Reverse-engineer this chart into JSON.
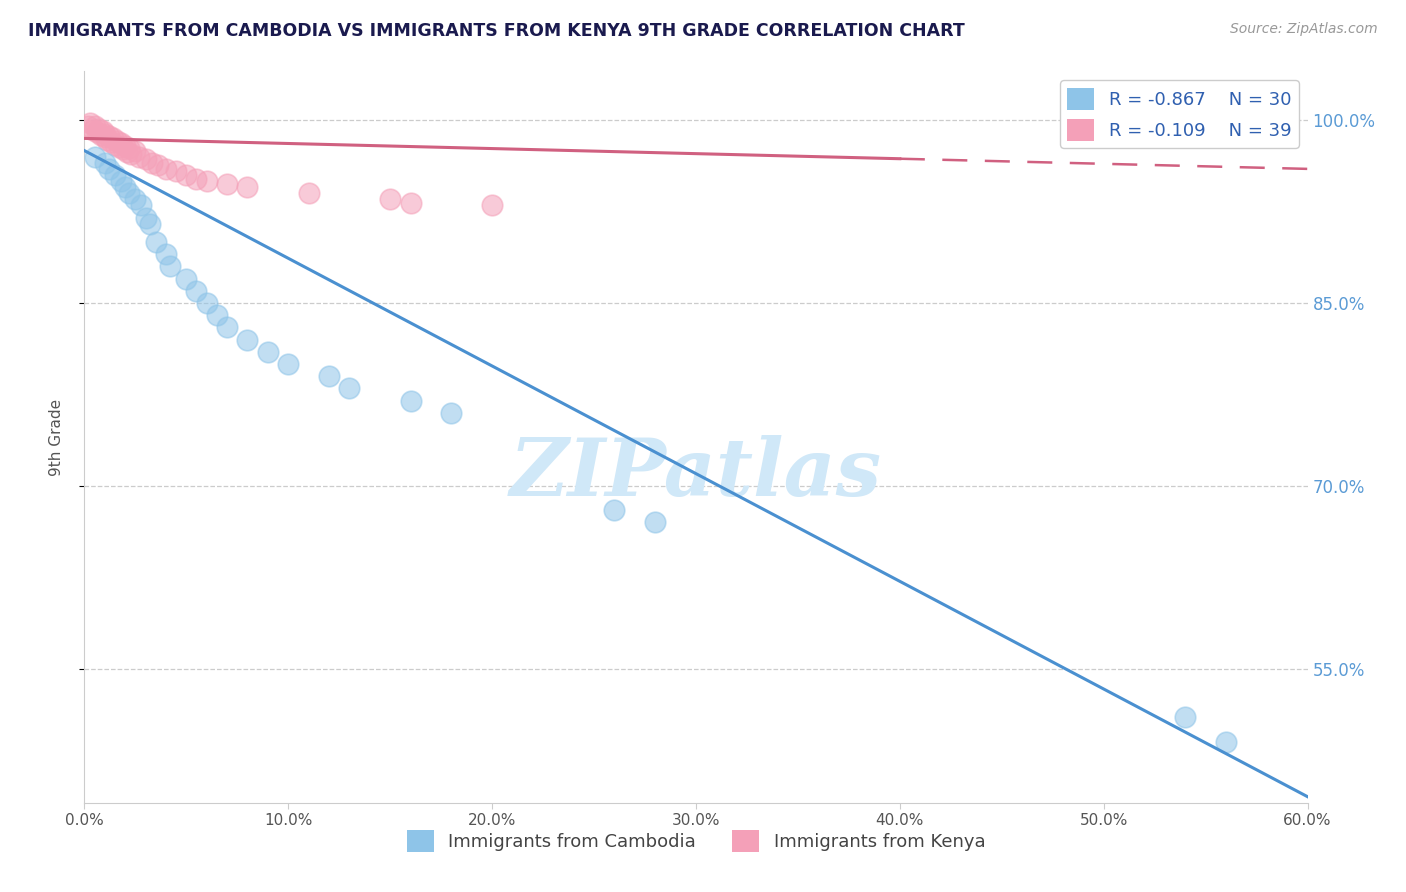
{
  "title": "IMMIGRANTS FROM CAMBODIA VS IMMIGRANTS FROM KENYA 9TH GRADE CORRELATION CHART",
  "source": "Source: ZipAtlas.com",
  "ylabel": "9th Grade",
  "xlim": [
    0.0,
    0.6
  ],
  "ylim": [
    0.44,
    1.04
  ],
  "xtick_labels": [
    "0.0%",
    "10.0%",
    "20.0%",
    "30.0%",
    "40.0%",
    "50.0%",
    "60.0%"
  ],
  "xtick_vals": [
    0.0,
    0.1,
    0.2,
    0.3,
    0.4,
    0.5,
    0.6
  ],
  "ytick_labels": [
    "55.0%",
    "70.0%",
    "85.0%",
    "100.0%"
  ],
  "ytick_vals": [
    0.55,
    0.7,
    0.85,
    1.0
  ],
  "grid_yticks": [
    0.55,
    0.7,
    0.85,
    1.0
  ],
  "legend_R_cambodia": "R = -0.867",
  "legend_N_cambodia": "N = 30",
  "legend_R_kenya": "R = -0.109",
  "legend_N_kenya": "N = 39",
  "color_cambodia": "#8ec4e8",
  "color_kenya": "#f4a0b8",
  "color_trendline_cambodia": "#4a90d0",
  "color_trendline_kenya": "#d06080",
  "background_color": "#ffffff",
  "watermark": "ZIPatlas",
  "watermark_color": "#d0e8f8",
  "cambodia_x": [
    0.005,
    0.01,
    0.012,
    0.015,
    0.018,
    0.02,
    0.022,
    0.025,
    0.028,
    0.03,
    0.032,
    0.035,
    0.04,
    0.042,
    0.05,
    0.055,
    0.06,
    0.065,
    0.07,
    0.08,
    0.09,
    0.1,
    0.12,
    0.13,
    0.16,
    0.18,
    0.26,
    0.28,
    0.54,
    0.56
  ],
  "cambodia_y": [
    0.97,
    0.965,
    0.96,
    0.955,
    0.95,
    0.945,
    0.94,
    0.935,
    0.93,
    0.92,
    0.915,
    0.9,
    0.89,
    0.88,
    0.87,
    0.86,
    0.85,
    0.84,
    0.83,
    0.82,
    0.81,
    0.8,
    0.79,
    0.78,
    0.77,
    0.76,
    0.68,
    0.67,
    0.51,
    0.49
  ],
  "kenya_x": [
    0.002,
    0.003,
    0.004,
    0.005,
    0.006,
    0.007,
    0.008,
    0.009,
    0.01,
    0.01,
    0.011,
    0.012,
    0.013,
    0.014,
    0.015,
    0.016,
    0.017,
    0.018,
    0.019,
    0.02,
    0.021,
    0.022,
    0.023,
    0.025,
    0.027,
    0.03,
    0.033,
    0.036,
    0.04,
    0.045,
    0.05,
    0.055,
    0.06,
    0.07,
    0.08,
    0.11,
    0.15,
    0.16,
    0.2
  ],
  "kenya_y": [
    0.995,
    0.998,
    0.992,
    0.995,
    0.99,
    0.993,
    0.988,
    0.991,
    0.986,
    0.989,
    0.984,
    0.987,
    0.982,
    0.985,
    0.98,
    0.983,
    0.978,
    0.981,
    0.976,
    0.979,
    0.974,
    0.977,
    0.972,
    0.975,
    0.97,
    0.968,
    0.965,
    0.963,
    0.96,
    0.958,
    0.955,
    0.952,
    0.95,
    0.948,
    0.945,
    0.94,
    0.935,
    0.932,
    0.93
  ],
  "trendline_cambodia_x0": 0.0,
  "trendline_cambodia_y0": 0.975,
  "trendline_cambodia_x1": 0.6,
  "trendline_cambodia_y1": 0.445,
  "trendline_kenya_x0": 0.0,
  "trendline_kenya_y0": 0.985,
  "trendline_kenya_x1": 0.6,
  "trendline_kenya_y1": 0.96,
  "trendline_kenya_solid_end": 0.4,
  "trendline_kenya_dashed_start": 0.4
}
